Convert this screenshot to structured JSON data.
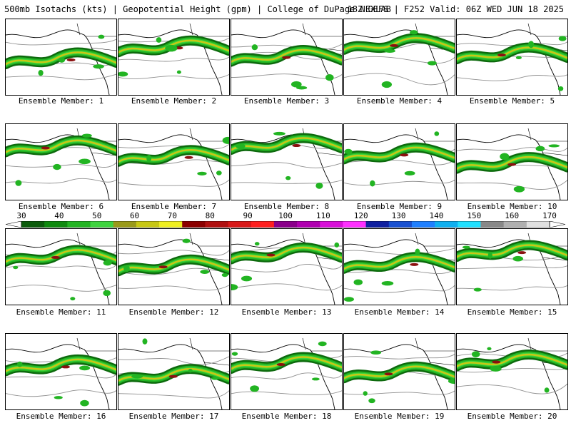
{
  "header": {
    "left": "500mb Isotachs (kts) | Geopotential Height (gpm) | College of DuPage NEXLAB",
    "right": "18Z GEFS | F252 Valid: 06Z WED JUN 18 2025"
  },
  "panels": [
    {
      "label": "Ensemble Member: 1"
    },
    {
      "label": "Ensemble Member: 2"
    },
    {
      "label": "Ensemble Member: 3"
    },
    {
      "label": "Ensemble Member: 4"
    },
    {
      "label": "Ensemble Member: 5"
    },
    {
      "label": "Ensemble Member: 6"
    },
    {
      "label": "Ensemble Member: 7"
    },
    {
      "label": "Ensemble Member: 8"
    },
    {
      "label": "Ensemble Member: 9"
    },
    {
      "label": "Ensemble Member: 10"
    },
    {
      "label": "Ensemble Member: 11"
    },
    {
      "label": "Ensemble Member: 12"
    },
    {
      "label": "Ensemble Member: 13"
    },
    {
      "label": "Ensemble Member: 14"
    },
    {
      "label": "Ensemble Member: 15"
    },
    {
      "label": "Ensemble Member: 16"
    },
    {
      "label": "Ensemble Member: 17"
    },
    {
      "label": "Ensemble Member: 18"
    },
    {
      "label": "Ensemble Member: 19"
    },
    {
      "label": "Ensemble Member: 20"
    }
  ],
  "colorbar": {
    "labels": [
      "30",
      "40",
      "50",
      "60",
      "70",
      "80",
      "90",
      "100",
      "110",
      "120",
      "130",
      "140",
      "150",
      "160",
      "170"
    ],
    "colors": [
      "#0d5c0d",
      "#0f8a0f",
      "#22b422",
      "#3fd43f",
      "#9a9a1a",
      "#c8c814",
      "#f0f020",
      "#8b0000",
      "#b01010",
      "#d81818",
      "#ff2020",
      "#8a008a",
      "#b000b0",
      "#d810d8",
      "#ff30ff",
      "#1020a0",
      "#1850d0",
      "#2080ff",
      "#10b0f0",
      "#20e0ff",
      "#888888",
      "#b0b0b0",
      "#e0e0e0"
    ]
  }
}
